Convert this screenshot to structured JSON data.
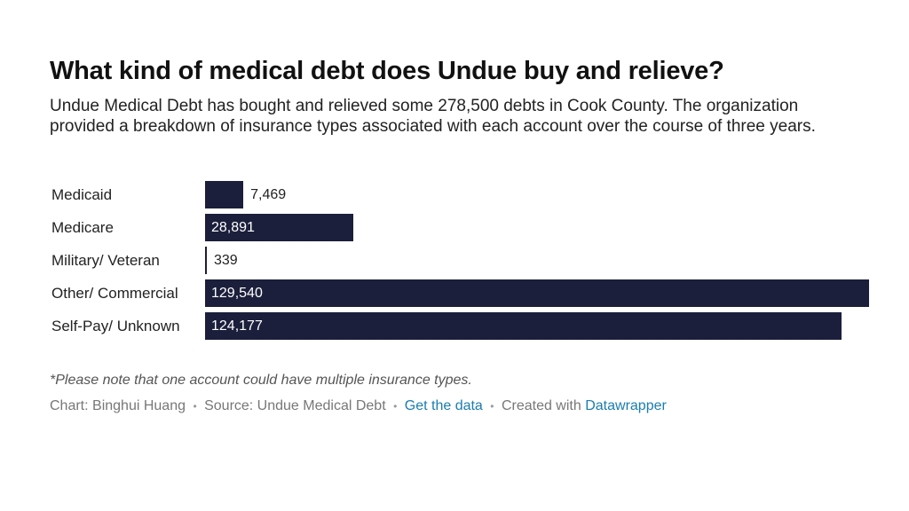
{
  "title": "What kind of medical debt does Undue buy and relieve?",
  "subtitle": "Undue Medical Debt has bought and relieved some 278,500 debts in Cook County. The organization provided a breakdown of insurance types associated with each account over the course of three years.",
  "note": "*Please note that one account could have multiple insurance types.",
  "footer": {
    "credit": "Chart: Binghui Huang",
    "source": "Source: Undue Medical Debt",
    "get_data": "Get the data",
    "created_with": "Created with",
    "tool": "Datawrapper",
    "separator": "•"
  },
  "colors": {
    "bar": "#1b1f3b",
    "link": "#1a7db0"
  },
  "chart_data": {
    "type": "bar",
    "orientation": "horizontal",
    "categories": [
      "Medicaid",
      "Medicare",
      "Military/ Veteran",
      "Other/ Commercial",
      "Self-Pay/ Unknown"
    ],
    "values": [
      7469,
      28891,
      339,
      129540,
      124177
    ],
    "value_labels": [
      "7,469",
      "28,891",
      "339",
      "129,540",
      "124,177"
    ],
    "xlim": [
      0,
      129540
    ],
    "grid": false,
    "legend": "none"
  }
}
